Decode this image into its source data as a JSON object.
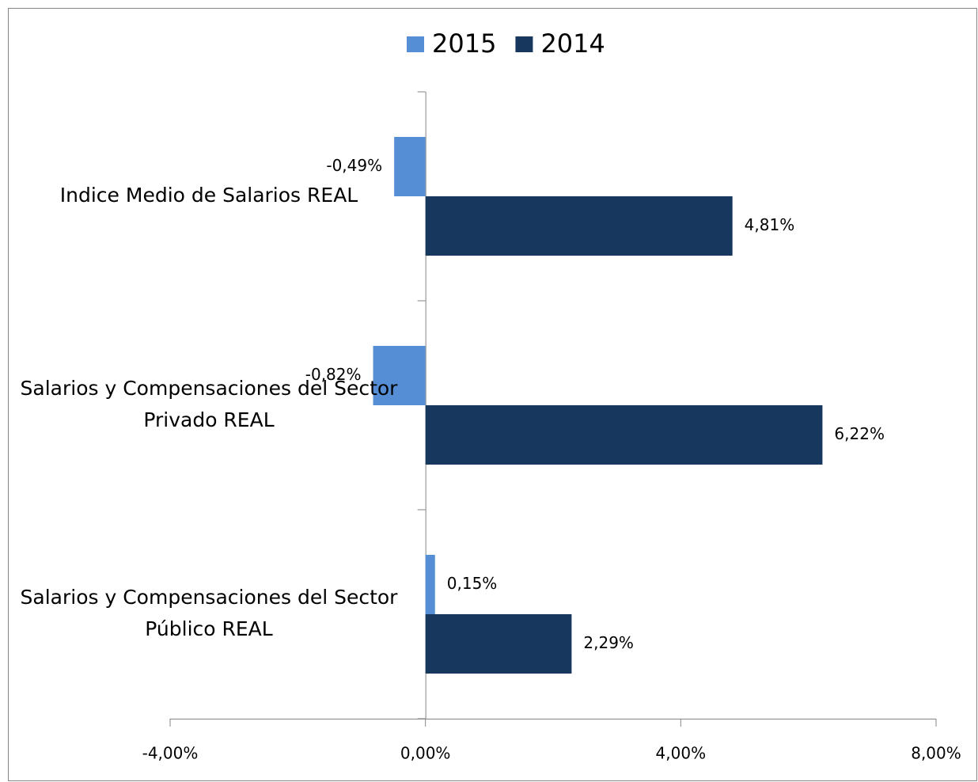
{
  "chart_data": {
    "type": "bar",
    "orientation": "horizontal",
    "categories": [
      "Indice Medio de Salarios REAL",
      "Salarios y Compensaciones del Sector Privado REAL",
      "Salarios y Compensaciones del Sector Público REAL"
    ],
    "series": [
      {
        "name": "2015",
        "color": "#558ed5",
        "values": [
          -0.49,
          -0.82,
          0.15
        ],
        "value_labels": [
          "-0,49%",
          "-0,82%",
          "0,15%"
        ]
      },
      {
        "name": "2014",
        "color": "#17375e",
        "values": [
          4.81,
          6.22,
          2.29
        ],
        "value_labels": [
          "4,81%",
          "6,22%",
          "2,29%"
        ]
      }
    ],
    "xlim": [
      -4,
      8
    ],
    "xticks": [
      {
        "value": -4,
        "label": "-4,00%"
      },
      {
        "value": 0,
        "label": "0,00%"
      },
      {
        "value": 4,
        "label": "4,00%"
      },
      {
        "value": 8,
        "label": "8,00%"
      }
    ],
    "legend": "top"
  }
}
